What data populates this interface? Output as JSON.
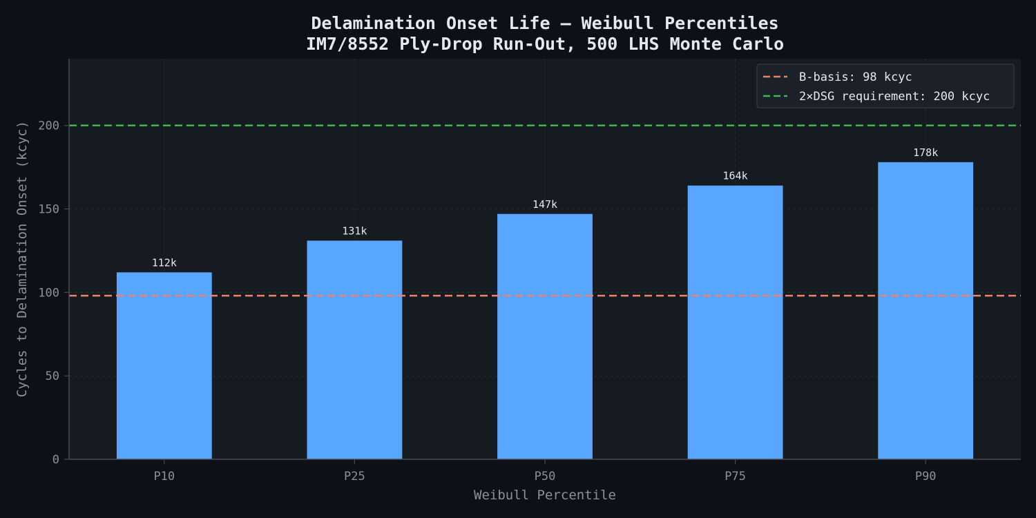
{
  "chart_data": {
    "type": "bar",
    "title": "Delamination Onset Life — Weibull Percentiles",
    "subtitle": "IM7/8552 Ply-Drop Run-Out, 500 LHS Monte Carlo",
    "xlabel": "Weibull Percentile",
    "ylabel": "Cycles to Delamination Onset (kcyc)",
    "categories": [
      "P10",
      "P25",
      "P50",
      "P75",
      "P90"
    ],
    "values": [
      112,
      131,
      147,
      164,
      178
    ],
    "data_labels": [
      "112k",
      "131k",
      "147k",
      "164k",
      "178k"
    ],
    "ylim": [
      0,
      240
    ],
    "yticks": [
      0,
      50,
      100,
      150,
      200
    ],
    "grid": true,
    "legend_position": "top-right",
    "reference_lines": [
      {
        "label": "B-basis: 98 kcyc",
        "value": 98,
        "color": "#f0826a",
        "style": "dashed"
      },
      {
        "label": "2×DSG requirement: 200 kcyc",
        "value": 200,
        "color": "#3fb950",
        "style": "dashed"
      }
    ],
    "colors": {
      "bar": "#58a6ff",
      "plot_background": "#161b22",
      "page_background": "#0d1017",
      "grid": "#2a313b",
      "axis": "#444c56"
    }
  }
}
